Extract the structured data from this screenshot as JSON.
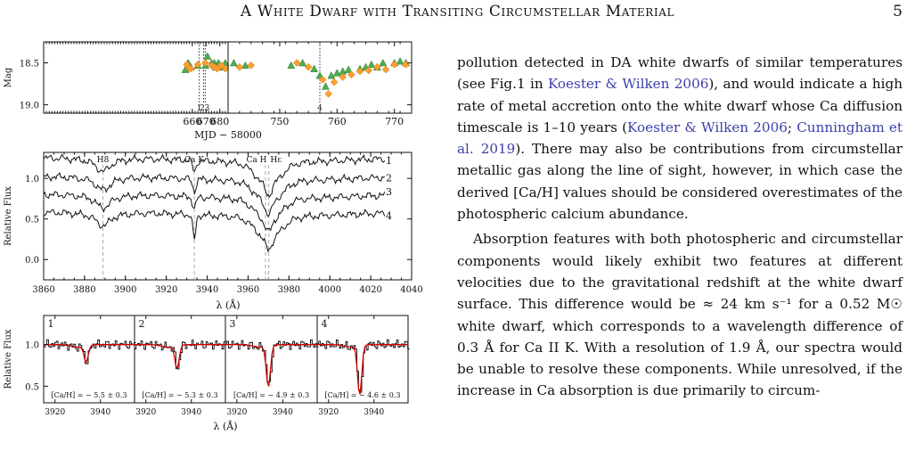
{
  "header": {
    "title": "A White Dwarf with Transiting Circumstellar Material",
    "page_number": "5"
  },
  "figure": {
    "chart_data": [
      {
        "type": "scatter",
        "ylabel": "Mag",
        "xlabel": "MJD − 58000",
        "ylim": [
          19.1,
          18.25
        ],
        "panels": [
          {
            "xlim": [
              552,
              686
            ],
            "xticks": [
              "660",
              "670",
              "680"
            ]
          },
          {
            "xlim": [
              741,
              773
            ],
            "xticks": [
              "750",
              "760",
              "770"
            ]
          }
        ],
        "yticks": [
          "18.5",
          "19.0"
        ],
        "series": [
          {
            "marker": "triangle",
            "color": "#4caf50",
            "x": [
              655,
              657,
              659,
              664,
              669.5,
              671,
              674,
              676,
              677,
              679,
              681,
              684,
              742,
              744,
              752,
              754,
              756,
              757,
              758,
              759,
              760,
              761,
              762,
              764,
              765,
              766,
              767,
              768,
              770,
              771,
              772
            ],
            "y": [
              18.58,
              18.5,
              18.55,
              18.53,
              18.53,
              18.42,
              18.5,
              18.5,
              18.55,
              18.5,
              18.55,
              18.5,
              18.5,
              18.53,
              18.53,
              18.5,
              18.57,
              18.65,
              18.78,
              18.65,
              18.62,
              18.6,
              18.58,
              18.57,
              18.55,
              18.52,
              18.55,
              18.5,
              18.5,
              18.48,
              18.5
            ]
          },
          {
            "marker": "diamond",
            "color": "#ff9f2e",
            "x": [
              656,
              657.5,
              659,
              664,
              669.5,
              674,
              676,
              678,
              681,
              684,
              743,
              745,
              753,
              755,
              757.5,
              758.5,
              759.5,
              761,
              762.5,
              764,
              765.5,
              767,
              768.5,
              770,
              772
            ],
            "y": [
              18.52,
              18.56,
              18.57,
              18.52,
              18.5,
              18.53,
              18.55,
              18.57,
              18.53,
              18.57,
              18.55,
              18.53,
              18.5,
              18.55,
              18.7,
              18.87,
              18.73,
              18.67,
              18.64,
              18.6,
              18.59,
              18.55,
              18.58,
              18.52,
              18.52
            ]
          }
        ],
        "vlines": [
          {
            "x": 665,
            "label": "1"
          },
          {
            "x": 668.2,
            "label": "2"
          },
          {
            "x": 669.4,
            "label": "3"
          },
          {
            "x": 757.0,
            "label": "4"
          }
        ]
      },
      {
        "type": "line",
        "xlabel": "λ (Å)",
        "ylabel": "Relative Flux",
        "xlim": [
          3860,
          4040
        ],
        "ylim": [
          -0.25,
          1.32
        ],
        "xticks": [
          "3860",
          "3880",
          "3900",
          "3920",
          "3940",
          "3960",
          "3980",
          "4000",
          "4020",
          "4040"
        ],
        "yticks": [
          "0.0",
          "0.5",
          "1.0"
        ],
        "line_labels": [
          {
            "x": 3889,
            "text": "H8"
          },
          {
            "x": 3933.7,
            "text": "Ca K"
          },
          {
            "x": 3968.5,
            "text": "Ca H"
          },
          {
            "x": 3970.1,
            "text": "Hε"
          }
        ],
        "series": [
          {
            "name": "1",
            "offset": 0.75
          },
          {
            "name": "2",
            "offset": 0.52
          },
          {
            "name": "3",
            "offset": 0.3
          },
          {
            "name": "4",
            "offset": 0.08
          }
        ]
      },
      {
        "type": "line",
        "xlabel": "λ (Å)",
        "ylabel": "Relative Flux",
        "xlim": [
          3915,
          3955
        ],
        "ylim": [
          0.3,
          1.35
        ],
        "yticks": [
          "0.5",
          "1.0"
        ],
        "xticks": [
          "3920",
          "3940"
        ],
        "panels": [
          {
            "label": "1",
            "annotation": "[Ca/H] = − 5.5 ± 0.3",
            "depth": 0.2
          },
          {
            "label": "2",
            "annotation": "[Ca/H] = − 5.3 ± 0.3",
            "depth": 0.28
          },
          {
            "label": "3",
            "annotation": "[Ca/H] = − 4.9 ± 0.3",
            "depth": 0.5
          },
          {
            "label": "4",
            "annotation": "[Ca/H] = − 4.6 ± 0.3",
            "depth": 0.6
          }
        ],
        "colors": {
          "data": "#000000",
          "model": "#d40000"
        }
      }
    ]
  },
  "body": {
    "p1": [
      {
        "t": "pollution detected in DA white dwarfs of similar temperatures (see Fig.1 in "
      },
      {
        "t": "Koester & Wilken 2006",
        "cite": true
      },
      {
        "t": "), and would indicate a high rate of metal accretion onto the white dwarf whose Ca diffusion timescale is 1–10 years ("
      },
      {
        "t": "Koester & Wilken 2006",
        "cite": true
      },
      {
        "t": "; "
      },
      {
        "t": "Cunningham et al. 2019",
        "cite": true
      },
      {
        "t": "). There may also be contributions from circumstellar metallic gas along the line of sight, however, in which case the derived [Ca/H] values should be considered overestimates of the photospheric calcium abundance."
      }
    ],
    "p2": [
      {
        "t": "Absorption features with both photospheric and circumstellar components would likely exhibit two features at different velocities due to the gravitational redshift at the white dwarf surface. This difference would be ≈ 24 km s⁻¹ for a 0.52 M☉ white dwarf, which corresponds to a wavelength difference of 0.3 Å for Ca II K. With a resolution of 1.9 Å, our spectra would be unable to resolve these components. While unresolved, if the increase in Ca absorption is due primarily to circum-"
      }
    ]
  }
}
